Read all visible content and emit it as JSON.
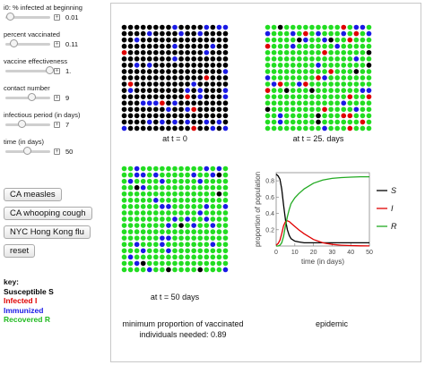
{
  "controls": [
    {
      "label": "i0: % infected at beginning",
      "value": "0.01",
      "fraction": 0.02
    },
    {
      "label": "percent vaccinated",
      "value": "0.11",
      "fraction": 0.11
    },
    {
      "label": "vaccine effectiveness",
      "value": "1.",
      "fraction": 1.0
    },
    {
      "label": "contact number",
      "value": "9",
      "fraction": 0.55
    },
    {
      "label": "infectious period (in days)",
      "value": "7",
      "fraction": 0.3
    },
    {
      "label": "time (in days)",
      "value": "50",
      "fraction": 0.45
    }
  ],
  "control_icon": "plus-square-icon",
  "buttons": [
    "CA measles",
    "CA whooping cough",
    "NYC Hong Kong flu",
    "reset"
  ],
  "key": {
    "title": "key:",
    "susceptible": "Susceptible S",
    "infected": "Infected I",
    "immunized": "Immunized",
    "recovered": "Recovered R"
  },
  "colors": {
    "susceptible": "#000000",
    "infected": "#e00000",
    "immunized": "#1a1ae6",
    "recovered": "#22dd22"
  },
  "grids": {
    "t0": {
      "caption": "at t = 0",
      "cols": 17,
      "rows": 17
    },
    "t25": {
      "caption": "at t = 25. days",
      "cols": 17,
      "rows": 17
    },
    "t50": {
      "caption": "at t = 50 days",
      "cols": 17,
      "rows": 17
    }
  },
  "bottom_text": {
    "vaccination": "minimum proportion of vaccinated individuals needed: 0.89",
    "epidemic": "epidemic"
  },
  "chart_data": {
    "type": "line",
    "xlabel": "time (in days)",
    "ylabel": "proportion of population",
    "xlim": [
      0,
      50
    ],
    "ylim": [
      0,
      0.9
    ],
    "xticks": [
      0,
      10,
      20,
      30,
      40,
      50
    ],
    "yticks": [
      0.2,
      0.4,
      0.6,
      0.8
    ],
    "x": [
      0,
      1,
      2,
      3,
      4,
      5,
      6,
      7,
      8,
      10,
      12,
      15,
      20,
      25,
      30,
      35,
      40,
      45,
      50
    ],
    "series": [
      {
        "name": "S",
        "color": "#000000",
        "values": [
          0.88,
          0.86,
          0.82,
          0.7,
          0.5,
          0.32,
          0.2,
          0.13,
          0.09,
          0.06,
          0.05,
          0.04,
          0.04,
          0.04,
          0.04,
          0.04,
          0.04,
          0.04,
          0.04
        ]
      },
      {
        "name": "I",
        "color": "#e00000",
        "values": [
          0.01,
          0.03,
          0.07,
          0.15,
          0.25,
          0.3,
          0.31,
          0.3,
          0.28,
          0.24,
          0.2,
          0.15,
          0.08,
          0.04,
          0.02,
          0.01,
          0.005,
          0.002,
          0.001
        ]
      },
      {
        "name": "R",
        "color": "#22aa22",
        "values": [
          0.0,
          0.0,
          0.01,
          0.04,
          0.12,
          0.25,
          0.36,
          0.45,
          0.52,
          0.59,
          0.64,
          0.7,
          0.77,
          0.81,
          0.83,
          0.84,
          0.845,
          0.85,
          0.85
        ]
      }
    ]
  }
}
